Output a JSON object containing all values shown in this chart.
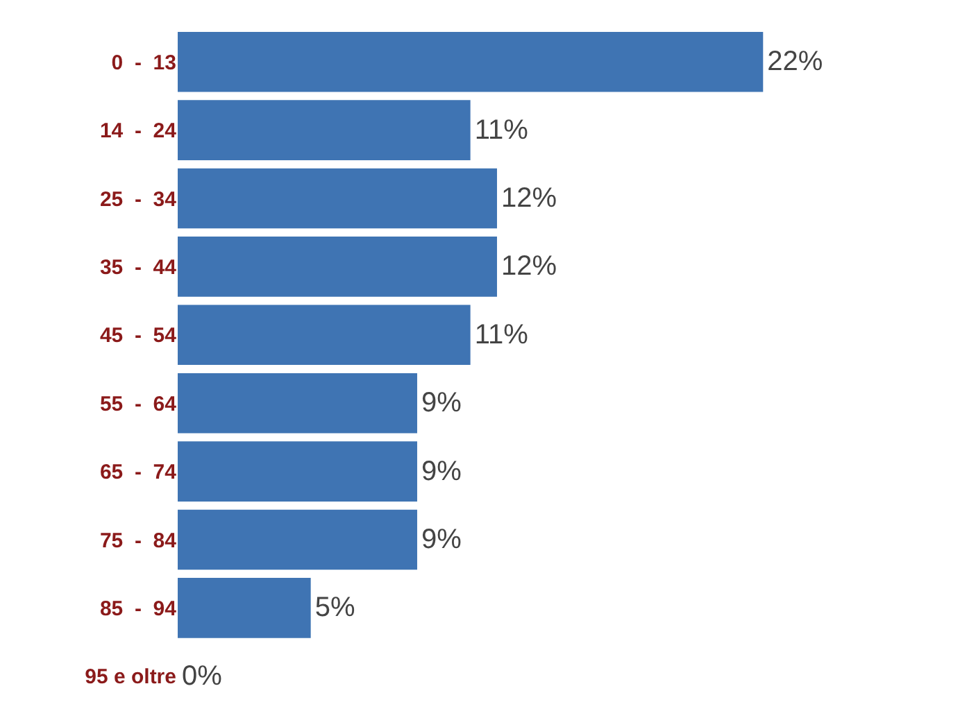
{
  "chart_data": {
    "type": "bar",
    "orientation": "horizontal",
    "categories": [
      "0  -  13",
      "14  -  24",
      "25  -  34",
      "35  -  44",
      "45  -  54",
      "55  -  64",
      "65  -  74",
      "75  -  84",
      "85  -  94",
      "95 e oltre"
    ],
    "values": [
      22,
      11,
      12,
      12,
      11,
      9,
      9,
      9,
      5,
      0
    ],
    "value_labels": [
      "22%",
      "11%",
      "12%",
      "12%",
      "11%",
      "9%",
      "9%",
      "9%",
      "5%",
      "0%"
    ],
    "color": "#3f74b3"
  }
}
